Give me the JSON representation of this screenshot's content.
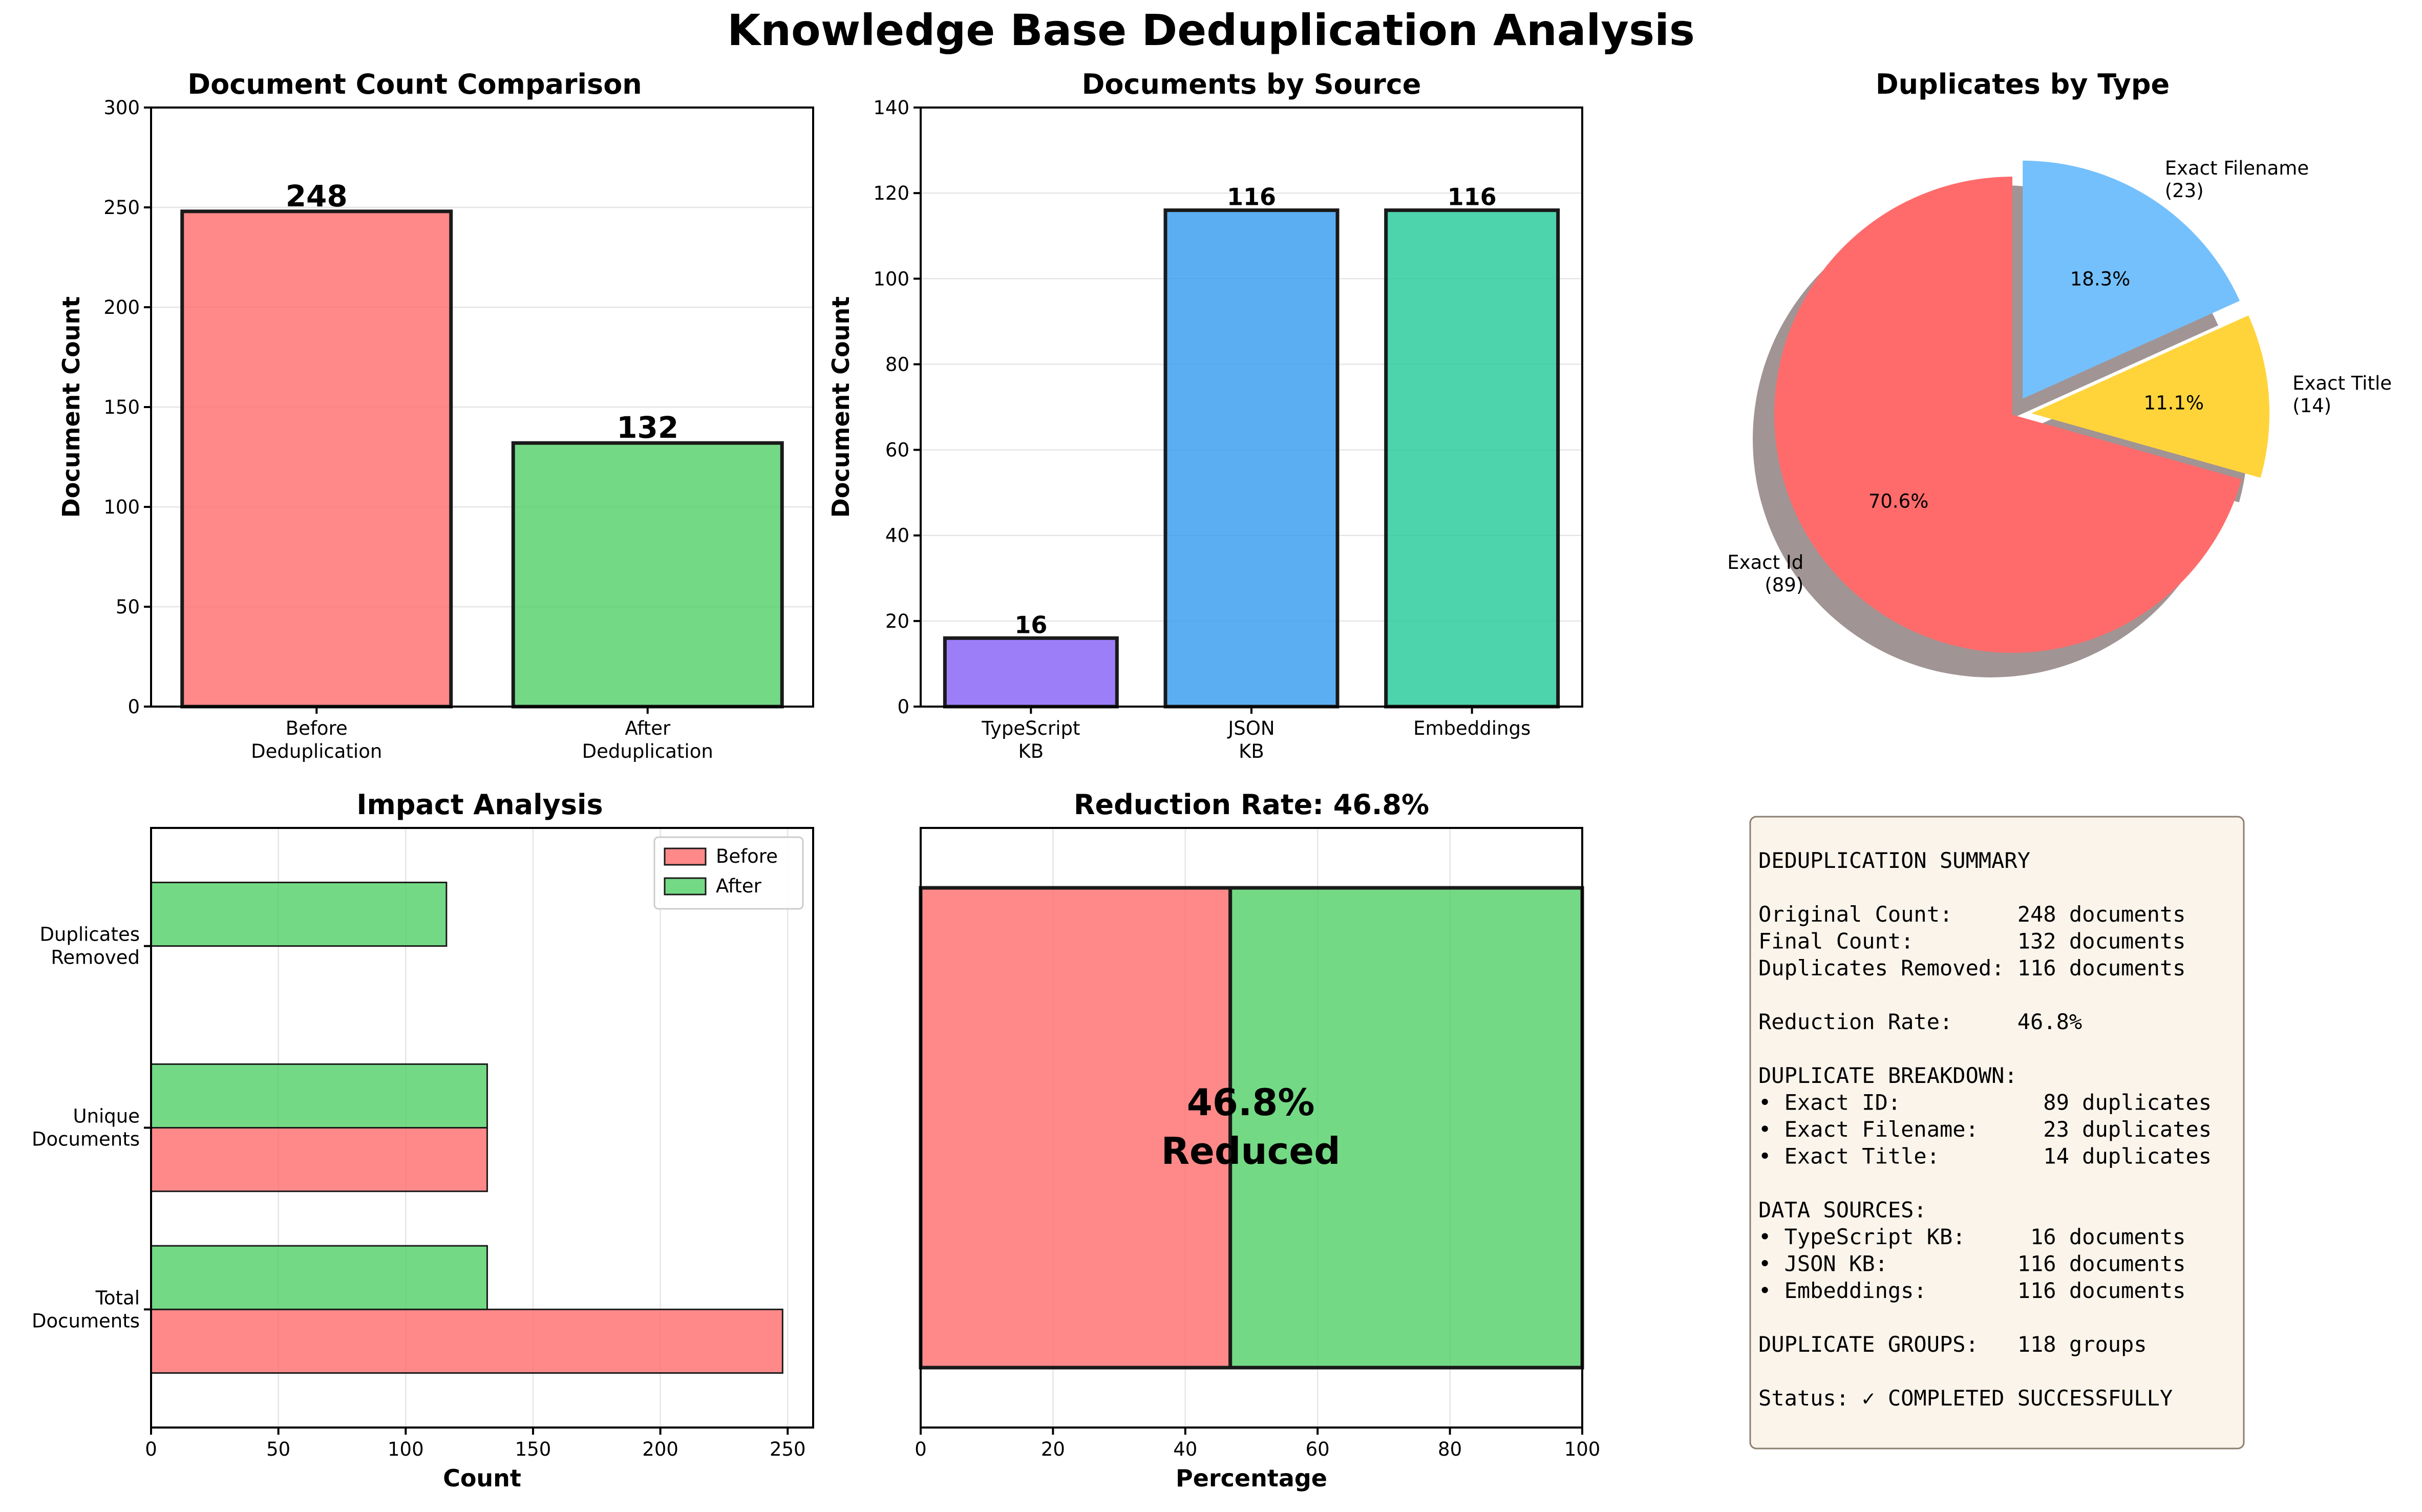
{
  "suptitle": "Knowledge Base Deduplication Analysis",
  "colors": {
    "before": "#FF6B6B",
    "after": "#51CF66",
    "typescript": "#845EF7",
    "json": "#339AF0",
    "embeddings": "#20C997",
    "pie_id": "#FF6B6B",
    "pie_title": "#FFD43B",
    "pie_filename": "#74C0FC",
    "summary_bg": "#F5EBDA"
  },
  "chart_data": [
    {
      "id": "count",
      "type": "bar",
      "title": "Document Count Comparison",
      "ylabel": "Document Count",
      "xlabel": "",
      "categories": [
        [
          "Before",
          "Deduplication"
        ],
        [
          "After",
          "Deduplication"
        ]
      ],
      "values": [
        248,
        132
      ],
      "labels": [
        "248",
        "132"
      ],
      "ylim": [
        0,
        300
      ],
      "yticks": [
        0,
        50,
        100,
        150,
        200,
        250,
        300
      ],
      "grid": "y"
    },
    {
      "id": "source",
      "type": "bar",
      "title": "Documents by Source",
      "ylabel": "Document Count",
      "xlabel": "",
      "categories": [
        [
          "TypeScript",
          "KB"
        ],
        [
          "JSON",
          "KB"
        ],
        [
          "Embeddings"
        ]
      ],
      "values": [
        16,
        116,
        116
      ],
      "labels": [
        "16",
        "116",
        "116"
      ],
      "ylim": [
        0,
        140
      ],
      "yticks": [
        0,
        20,
        40,
        60,
        80,
        100,
        120,
        140
      ],
      "grid": "y"
    },
    {
      "id": "pie",
      "type": "pie",
      "title": "Duplicates by Type",
      "slices": [
        {
          "label": "Exact Id",
          "count": "(89)",
          "value": 89,
          "pct": "70.6%"
        },
        {
          "label": "Exact Title",
          "count": "(14)",
          "value": 14,
          "pct": "11.1%"
        },
        {
          "label": "Exact Filename",
          "count": "(23)",
          "value": 23,
          "pct": "18.3%"
        }
      ]
    },
    {
      "id": "impact",
      "type": "bar",
      "orientation": "horizontal",
      "title": "Impact Analysis",
      "xlabel": "Count",
      "ylabel": "",
      "categories": [
        [
          "Total",
          "Documents"
        ],
        [
          "Unique",
          "Documents"
        ],
        [
          "Duplicates",
          "Removed"
        ]
      ],
      "series": [
        {
          "name": "Before",
          "values": [
            248,
            132,
            0
          ]
        },
        {
          "name": "After",
          "values": [
            132,
            132,
            116
          ]
        }
      ],
      "xlim": [
        0,
        260
      ],
      "xticks": [
        0,
        50,
        100,
        150,
        200,
        250
      ],
      "legend": "top-right",
      "grid": "x"
    },
    {
      "id": "reduction",
      "type": "bar",
      "orientation": "horizontal-stacked",
      "title": "Reduction Rate: 46.8%",
      "xlabel": "Percentage",
      "ylabel": "",
      "segments": [
        46.8,
        53.2
      ],
      "center_label": [
        "46.8%",
        "Reduced"
      ],
      "xlim": [
        0,
        100
      ],
      "xticks": [
        0,
        20,
        40,
        60,
        80,
        100
      ],
      "grid": "x"
    }
  ],
  "summary": {
    "lines": [
      "DEDUPLICATION SUMMARY",
      "",
      "Original Count:     248 documents",
      "Final Count:        132 documents",
      "Duplicates Removed: 116 documents",
      "",
      "Reduction Rate:     46.8%",
      "",
      "DUPLICATE BREAKDOWN:",
      "• Exact ID:           89 duplicates",
      "• Exact Filename:     23 duplicates",
      "• Exact Title:        14 duplicates",
      "",
      "DATA SOURCES:",
      "• TypeScript KB:     16 documents",
      "• JSON KB:          116 documents",
      "• Embeddings:       116 documents",
      "",
      "DUPLICATE GROUPS:   118 groups",
      "",
      "Status: ✓ COMPLETED SUCCESSFULLY"
    ]
  }
}
